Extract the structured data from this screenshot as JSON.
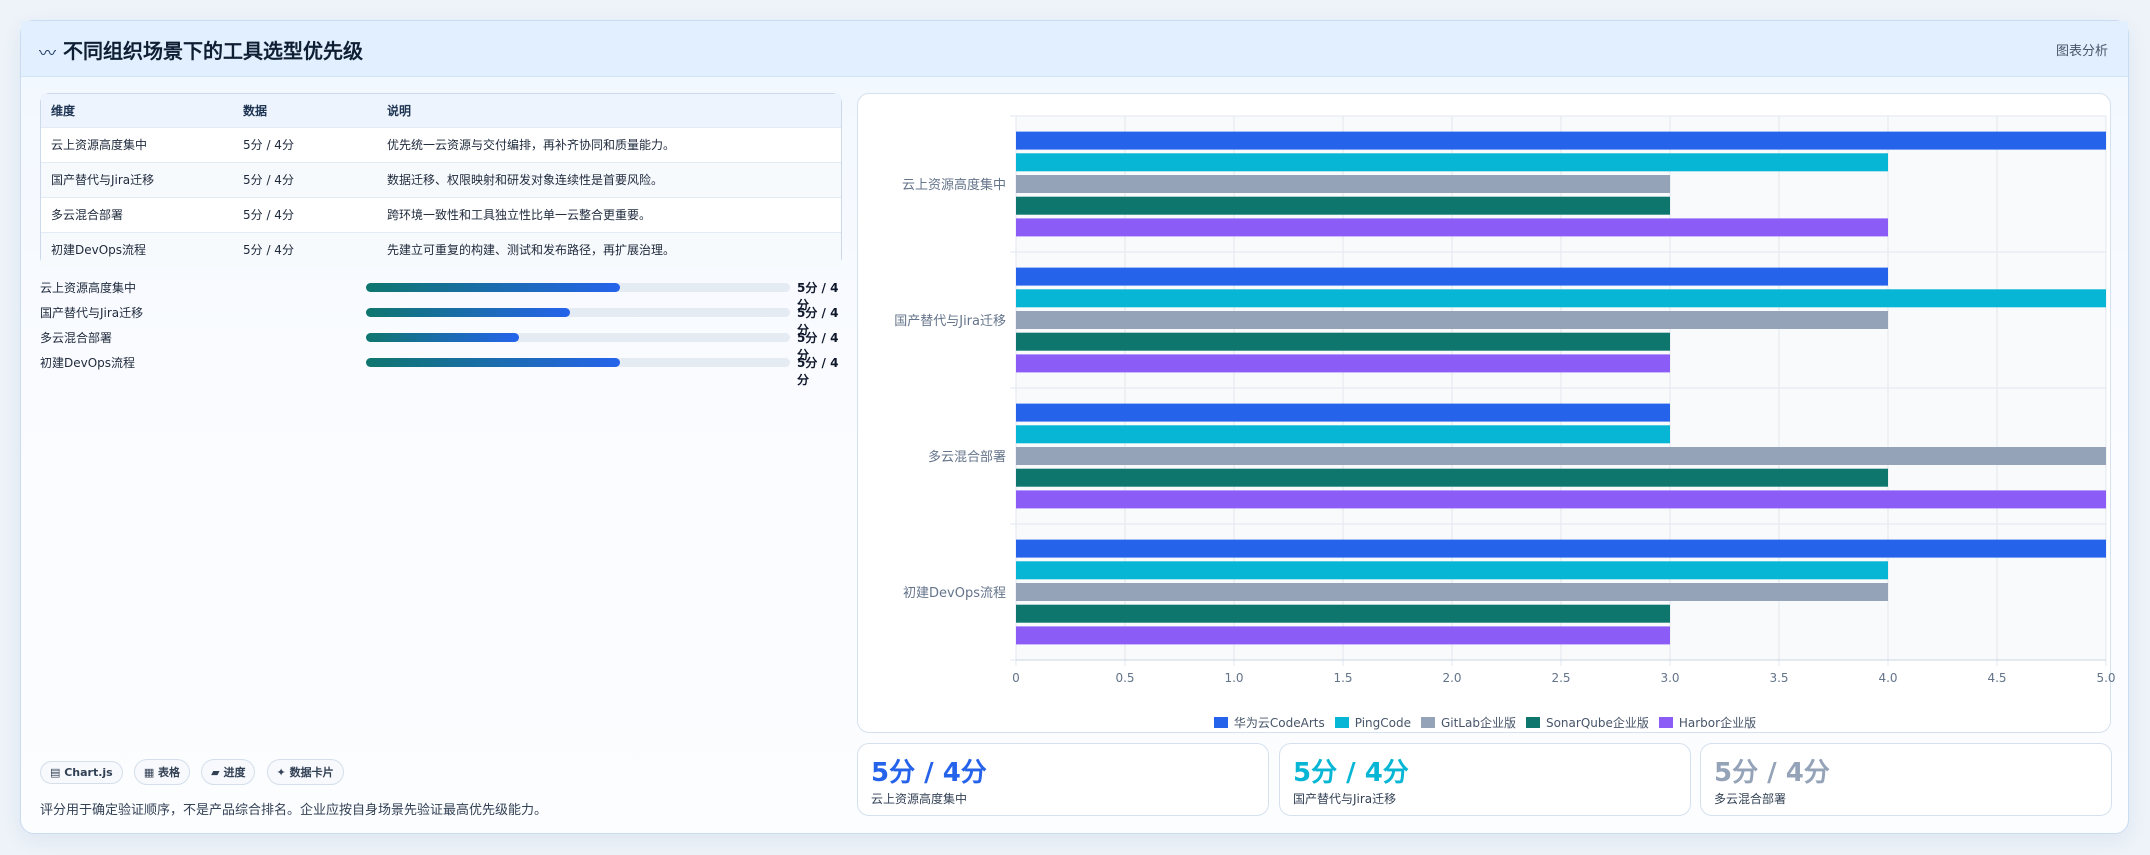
{
  "header": {
    "title": "不同组织场景下的工具选型优先级",
    "title_icon": "〰",
    "action": "图表分析"
  },
  "table": {
    "headers": [
      "维度",
      "数据",
      "说明"
    ],
    "rows": [
      [
        "云上资源高度集中",
        "5分 / 4分",
        "优先统一云资源与交付编排，再补齐协同和质量能力。"
      ],
      [
        "国产替代与Jira迁移",
        "5分 / 4分",
        "数据迁移、权限映射和研发对象连续性是首要风险。"
      ],
      [
        "多云混合部署",
        "5分 / 4分",
        "跨环境一致性和工具独立性比单一云整合更重要。"
      ],
      [
        "初建DevOps流程",
        "5分 / 4分",
        "先建立可重复的构建、测试和发布路径，再扩展治理。"
      ]
    ]
  },
  "progress": [
    {
      "label": "云上资源高度集中",
      "value": "5分 / 4分",
      "fraction": 0.6
    },
    {
      "label": "国产替代与Jira迁移",
      "value": "5分 / 4分",
      "fraction": 0.48
    },
    {
      "label": "多云混合部署",
      "value": "5分 / 4分",
      "fraction": 0.36
    },
    {
      "label": "初建DevOps流程",
      "value": "5分 / 4分",
      "fraction": 0.6
    }
  ],
  "chips": [
    "▤ Chart.js",
    "▦ 表格",
    "▰ 进度",
    "✦ 数据卡片"
  ],
  "footnote": "评分用于确定验证顺序，不是产品综合排名。企业应按自身场景先验证最高优先级能力。",
  "stats": [
    {
      "value": "5分 / 4分",
      "label": "云上资源高度集中",
      "color": "#2563eb"
    },
    {
      "value": "5分 / 4分",
      "label": "国产替代与Jira迁移",
      "color": "#06b6d4"
    },
    {
      "value": "5分 / 4分",
      "label": "多云混合部署",
      "color": "#94a3b8"
    }
  ],
  "chart_data": {
    "type": "bar",
    "orientation": "horizontal",
    "categories": [
      "云上资源高度集中",
      "国产替代与Jira迁移",
      "多云混合部署",
      "初建DevOps流程"
    ],
    "series": [
      {
        "name": "华为云CodeArts",
        "color": "#2563eb",
        "values": [
          5,
          4,
          3,
          5
        ]
      },
      {
        "name": "PingCode",
        "color": "#06b6d4",
        "values": [
          4,
          5,
          3,
          4
        ]
      },
      {
        "name": "GitLab企业版",
        "color": "#94a3b8",
        "values": [
          3,
          4,
          5,
          4
        ]
      },
      {
        "name": "SonarQube企业版",
        "color": "#0f766e",
        "values": [
          3,
          3,
          4,
          3
        ]
      },
      {
        "name": "Harbor企业版",
        "color": "#8b5cf6",
        "values": [
          4,
          3,
          5,
          3
        ]
      }
    ],
    "xlim": [
      0,
      5
    ],
    "xticks": [
      "0",
      "0.5",
      "1.0",
      "1.5",
      "2.0",
      "2.5",
      "3.0",
      "3.5",
      "4.0",
      "4.5",
      "5.0"
    ],
    "grid": true,
    "legend": "bottom"
  }
}
